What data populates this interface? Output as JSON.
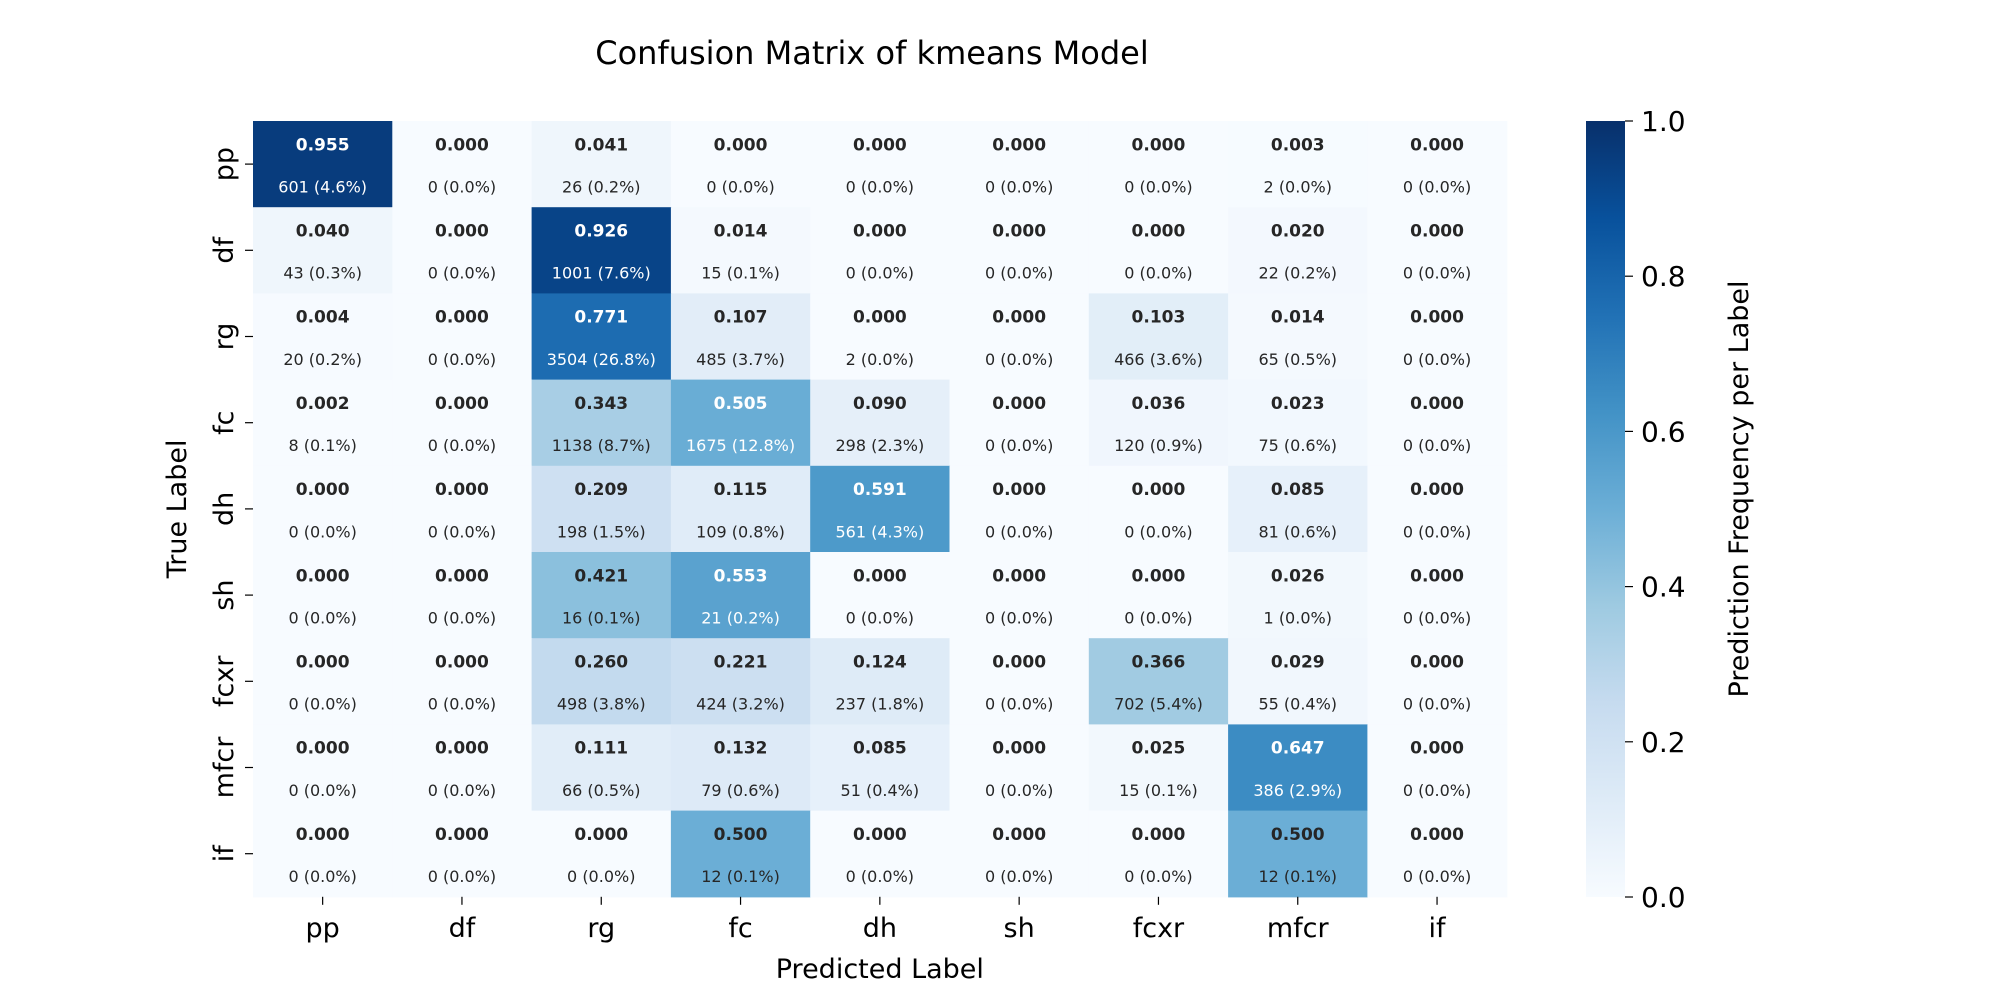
{
  "chart_data": {
    "type": "heatmap",
    "title": "Confusion Matrix of kmeans Model",
    "xlabel": "Predicted Label",
    "ylabel": "True Label",
    "x_categories": [
      "pp",
      "df",
      "rg",
      "fc",
      "dh",
      "sh",
      "fcxr",
      "mfcr",
      "if"
    ],
    "y_categories": [
      "pp",
      "df",
      "rg",
      "fc",
      "dh",
      "sh",
      "fcxr",
      "mfcr",
      "if"
    ],
    "values": [
      [
        0.955,
        0.0,
        0.041,
        0.0,
        0.0,
        0.0,
        0.0,
        0.003,
        0.0
      ],
      [
        0.04,
        0.0,
        0.926,
        0.014,
        0.0,
        0.0,
        0.0,
        0.02,
        0.0
      ],
      [
        0.004,
        0.0,
        0.771,
        0.107,
        0.0,
        0.0,
        0.103,
        0.014,
        0.0
      ],
      [
        0.002,
        0.0,
        0.343,
        0.505,
        0.09,
        0.0,
        0.036,
        0.023,
        0.0
      ],
      [
        0.0,
        0.0,
        0.209,
        0.115,
        0.591,
        0.0,
        0.0,
        0.085,
        0.0
      ],
      [
        0.0,
        0.0,
        0.421,
        0.553,
        0.0,
        0.0,
        0.0,
        0.026,
        0.0
      ],
      [
        0.0,
        0.0,
        0.26,
        0.221,
        0.124,
        0.0,
        0.366,
        0.029,
        0.0
      ],
      [
        0.0,
        0.0,
        0.111,
        0.132,
        0.085,
        0.0,
        0.025,
        0.647,
        0.0
      ],
      [
        0.0,
        0.0,
        0.0,
        0.5,
        0.0,
        0.0,
        0.0,
        0.5,
        0.0
      ]
    ],
    "freq_labels": [
      [
        "0.955",
        "0.000",
        "0.041",
        "0.000",
        "0.000",
        "0.000",
        "0.000",
        "0.003",
        "0.000"
      ],
      [
        "0.040",
        "0.000",
        "0.926",
        "0.014",
        "0.000",
        "0.000",
        "0.000",
        "0.020",
        "0.000"
      ],
      [
        "0.004",
        "0.000",
        "0.771",
        "0.107",
        "0.000",
        "0.000",
        "0.103",
        "0.014",
        "0.000"
      ],
      [
        "0.002",
        "0.000",
        "0.343",
        "0.505",
        "0.090",
        "0.000",
        "0.036",
        "0.023",
        "0.000"
      ],
      [
        "0.000",
        "0.000",
        "0.209",
        "0.115",
        "0.591",
        "0.000",
        "0.000",
        "0.085",
        "0.000"
      ],
      [
        "0.000",
        "0.000",
        "0.421",
        "0.553",
        "0.000",
        "0.000",
        "0.000",
        "0.026",
        "0.000"
      ],
      [
        "0.000",
        "0.000",
        "0.260",
        "0.221",
        "0.124",
        "0.000",
        "0.366",
        "0.029",
        "0.000"
      ],
      [
        "0.000",
        "0.000",
        "0.111",
        "0.132",
        "0.085",
        "0.000",
        "0.025",
        "0.647",
        "0.000"
      ],
      [
        "0.000",
        "0.000",
        "0.000",
        "0.500",
        "0.000",
        "0.000",
        "0.000",
        "0.500",
        "0.000"
      ]
    ],
    "count_labels": [
      [
        "601 (4.6%)",
        "0 (0.0%)",
        "26 (0.2%)",
        "0 (0.0%)",
        "0 (0.0%)",
        "0 (0.0%)",
        "0 (0.0%)",
        "2 (0.0%)",
        "0 (0.0%)"
      ],
      [
        "43 (0.3%)",
        "0 (0.0%)",
        "1001 (7.6%)",
        "15 (0.1%)",
        "0 (0.0%)",
        "0 (0.0%)",
        "0 (0.0%)",
        "22 (0.2%)",
        "0 (0.0%)"
      ],
      [
        "20 (0.2%)",
        "0 (0.0%)",
        "3504 (26.8%)",
        "485 (3.7%)",
        "2 (0.0%)",
        "0 (0.0%)",
        "466 (3.6%)",
        "65 (0.5%)",
        "0 (0.0%)"
      ],
      [
        "8 (0.1%)",
        "0 (0.0%)",
        "1138 (8.7%)",
        "1675 (12.8%)",
        "298 (2.3%)",
        "0 (0.0%)",
        "120 (0.9%)",
        "75 (0.6%)",
        "0 (0.0%)"
      ],
      [
        "0 (0.0%)",
        "0 (0.0%)",
        "198 (1.5%)",
        "109 (0.8%)",
        "561 (4.3%)",
        "0 (0.0%)",
        "0 (0.0%)",
        "81 (0.6%)",
        "0 (0.0%)"
      ],
      [
        "0 (0.0%)",
        "0 (0.0%)",
        "16 (0.1%)",
        "21 (0.2%)",
        "0 (0.0%)",
        "0 (0.0%)",
        "0 (0.0%)",
        "1 (0.0%)",
        "0 (0.0%)"
      ],
      [
        "0 (0.0%)",
        "0 (0.0%)",
        "498 (3.8%)",
        "424 (3.2%)",
        "237 (1.8%)",
        "0 (0.0%)",
        "702 (5.4%)",
        "55 (0.4%)",
        "0 (0.0%)"
      ],
      [
        "0 (0.0%)",
        "0 (0.0%)",
        "66 (0.5%)",
        "79 (0.6%)",
        "51 (0.4%)",
        "0 (0.0%)",
        "15 (0.1%)",
        "386 (2.9%)",
        "0 (0.0%)"
      ],
      [
        "0 (0.0%)",
        "0 (0.0%)",
        "0 (0.0%)",
        "12 (0.1%)",
        "0 (0.0%)",
        "0 (0.0%)",
        "0 (0.0%)",
        "12 (0.1%)",
        "0 (0.0%)"
      ]
    ],
    "colorbar": {
      "label": "Prediction Frequency per Label",
      "range": [
        0.0,
        1.0
      ],
      "ticks": [
        0.0,
        0.2,
        0.4,
        0.6,
        0.8,
        1.0
      ],
      "tick_labels": [
        "0.0",
        "0.2",
        "0.4",
        "0.6",
        "0.8",
        "1.0"
      ],
      "colormap": "Blues",
      "color_stops": [
        "#f7fbff",
        "#deebf7",
        "#c6dbef",
        "#9ecae1",
        "#6baed6",
        "#4292c6",
        "#2171b5",
        "#08519c",
        "#08306b"
      ]
    },
    "grid": false
  }
}
